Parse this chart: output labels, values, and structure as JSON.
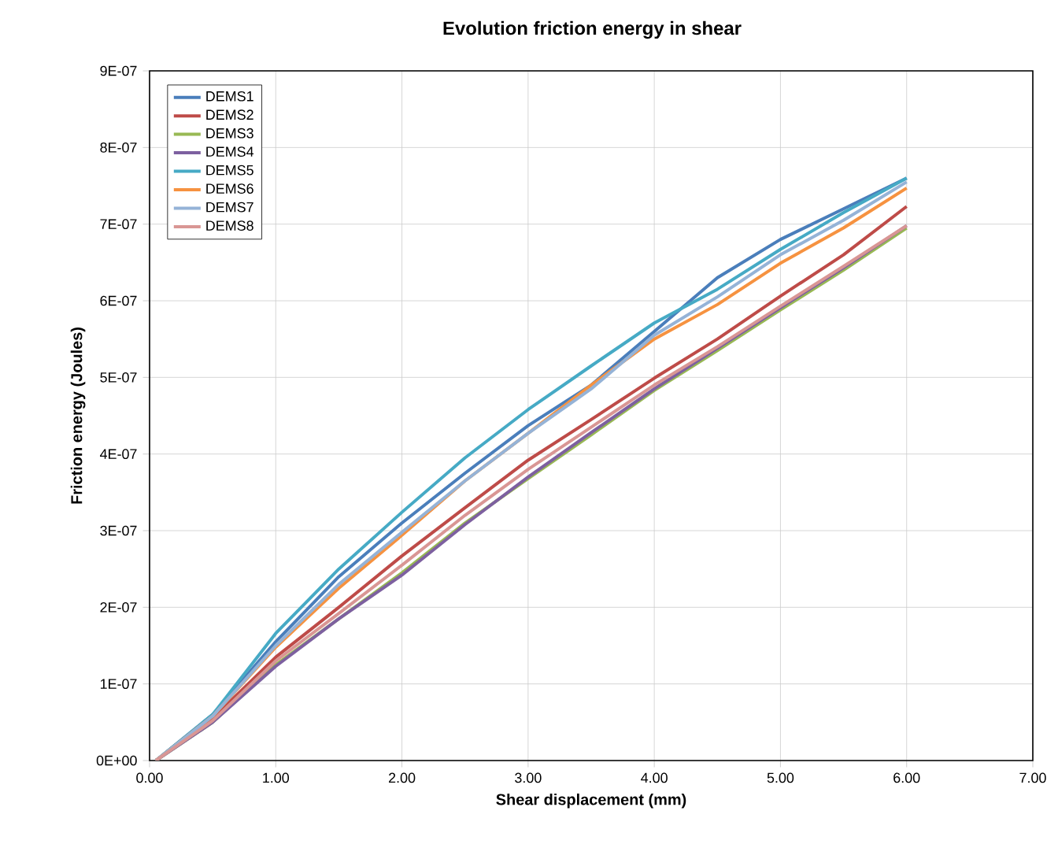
{
  "chart_data": {
    "type": "line",
    "title": "Evolution friction energy in shear",
    "xlabel": "Shear displacement  (mm)",
    "ylabel": "Friction energy (Joules)",
    "x": [
      0.05,
      0.5,
      1,
      1.5,
      2,
      2.5,
      3,
      3.5,
      4,
      4.5,
      5,
      5.5,
      6
    ],
    "series": [
      {
        "name": "DEMS1",
        "color": "#4a7ebb",
        "values": [
          0,
          6e-08,
          1.55e-07,
          2.4e-07,
          3.1e-07,
          3.75e-07,
          4.37e-07,
          4.9e-07,
          5.6e-07,
          6.3e-07,
          6.8e-07,
          7.2e-07,
          7.6e-07
        ]
      },
      {
        "name": "DEMS2",
        "color": "#be4b48",
        "values": [
          0,
          5.5e-08,
          1.35e-07,
          2e-07,
          2.67e-07,
          3.3e-07,
          3.92e-07,
          4.45e-07,
          4.99e-07,
          5.5e-07,
          6.06e-07,
          6.6e-07,
          7.23e-07
        ]
      },
      {
        "name": "DEMS3",
        "color": "#98b954",
        "values": [
          0,
          5e-08,
          1.25e-07,
          1.85e-07,
          2.45e-07,
          3.1e-07,
          3.68e-07,
          4.25e-07,
          4.83e-07,
          5.35e-07,
          5.88e-07,
          6.4e-07,
          6.95e-07
        ]
      },
      {
        "name": "DEMS4",
        "color": "#7d60a0",
        "values": [
          0,
          5e-08,
          1.23e-07,
          1.85e-07,
          2.42e-07,
          3.08e-07,
          3.7e-07,
          4.28e-07,
          4.85e-07,
          5.38e-07,
          5.91e-07,
          6.43e-07,
          6.98e-07
        ]
      },
      {
        "name": "DEMS5",
        "color": "#46aac5",
        "values": [
          0,
          6e-08,
          1.66e-07,
          2.5e-07,
          3.24e-07,
          3.95e-07,
          4.58e-07,
          5.15e-07,
          5.71e-07,
          6.15e-07,
          6.67e-07,
          7.15e-07,
          7.6e-07
        ]
      },
      {
        "name": "DEMS6",
        "color": "#f69240",
        "values": [
          0,
          5.8e-08,
          1.48e-07,
          2.25e-07,
          2.94e-07,
          3.65e-07,
          4.27e-07,
          4.9e-07,
          5.5e-07,
          5.95e-07,
          6.49e-07,
          6.95e-07,
          7.47e-07
        ]
      },
      {
        "name": "DEMS7",
        "color": "#95b3d7",
        "values": [
          0,
          5.8e-08,
          1.5e-07,
          2.3e-07,
          2.98e-07,
          3.65e-07,
          4.27e-07,
          4.85e-07,
          5.55e-07,
          6.05e-07,
          6.6e-07,
          7.05e-07,
          7.55e-07
        ]
      },
      {
        "name": "DEMS8",
        "color": "#d99694",
        "values": [
          0,
          5.2e-08,
          1.3e-07,
          1.92e-07,
          2.55e-07,
          3.2e-07,
          3.8e-07,
          4.35e-07,
          4.9e-07,
          5.4e-07,
          5.93e-07,
          6.45e-07,
          6.98e-07
        ]
      }
    ],
    "xlim": [
      0,
      7
    ],
    "ylim": [
      0,
      9e-07
    ],
    "xticks": [
      {
        "value": 0,
        "label": "0.00"
      },
      {
        "value": 1,
        "label": "1.00"
      },
      {
        "value": 2,
        "label": "2.00"
      },
      {
        "value": 3,
        "label": "3.00"
      },
      {
        "value": 4,
        "label": "4.00"
      },
      {
        "value": 5,
        "label": "5.00"
      },
      {
        "value": 6,
        "label": "6.00"
      },
      {
        "value": 7,
        "label": "7.00"
      }
    ],
    "yticks": [
      {
        "value": 0,
        "label": "0E+00"
      },
      {
        "value": 1e-07,
        "label": "1E-07"
      },
      {
        "value": 2e-07,
        "label": "2E-07"
      },
      {
        "value": 3e-07,
        "label": "3E-07"
      },
      {
        "value": 4e-07,
        "label": "4E-07"
      },
      {
        "value": 5e-07,
        "label": "5E-07"
      },
      {
        "value": 6e-07,
        "label": "6E-07"
      },
      {
        "value": 7e-07,
        "label": "7E-07"
      },
      {
        "value": 8e-07,
        "label": "8E-07"
      },
      {
        "value": 9e-07,
        "label": "9E-07"
      }
    ],
    "grid": true,
    "legend": "top left",
    "line_style": "solid"
  }
}
